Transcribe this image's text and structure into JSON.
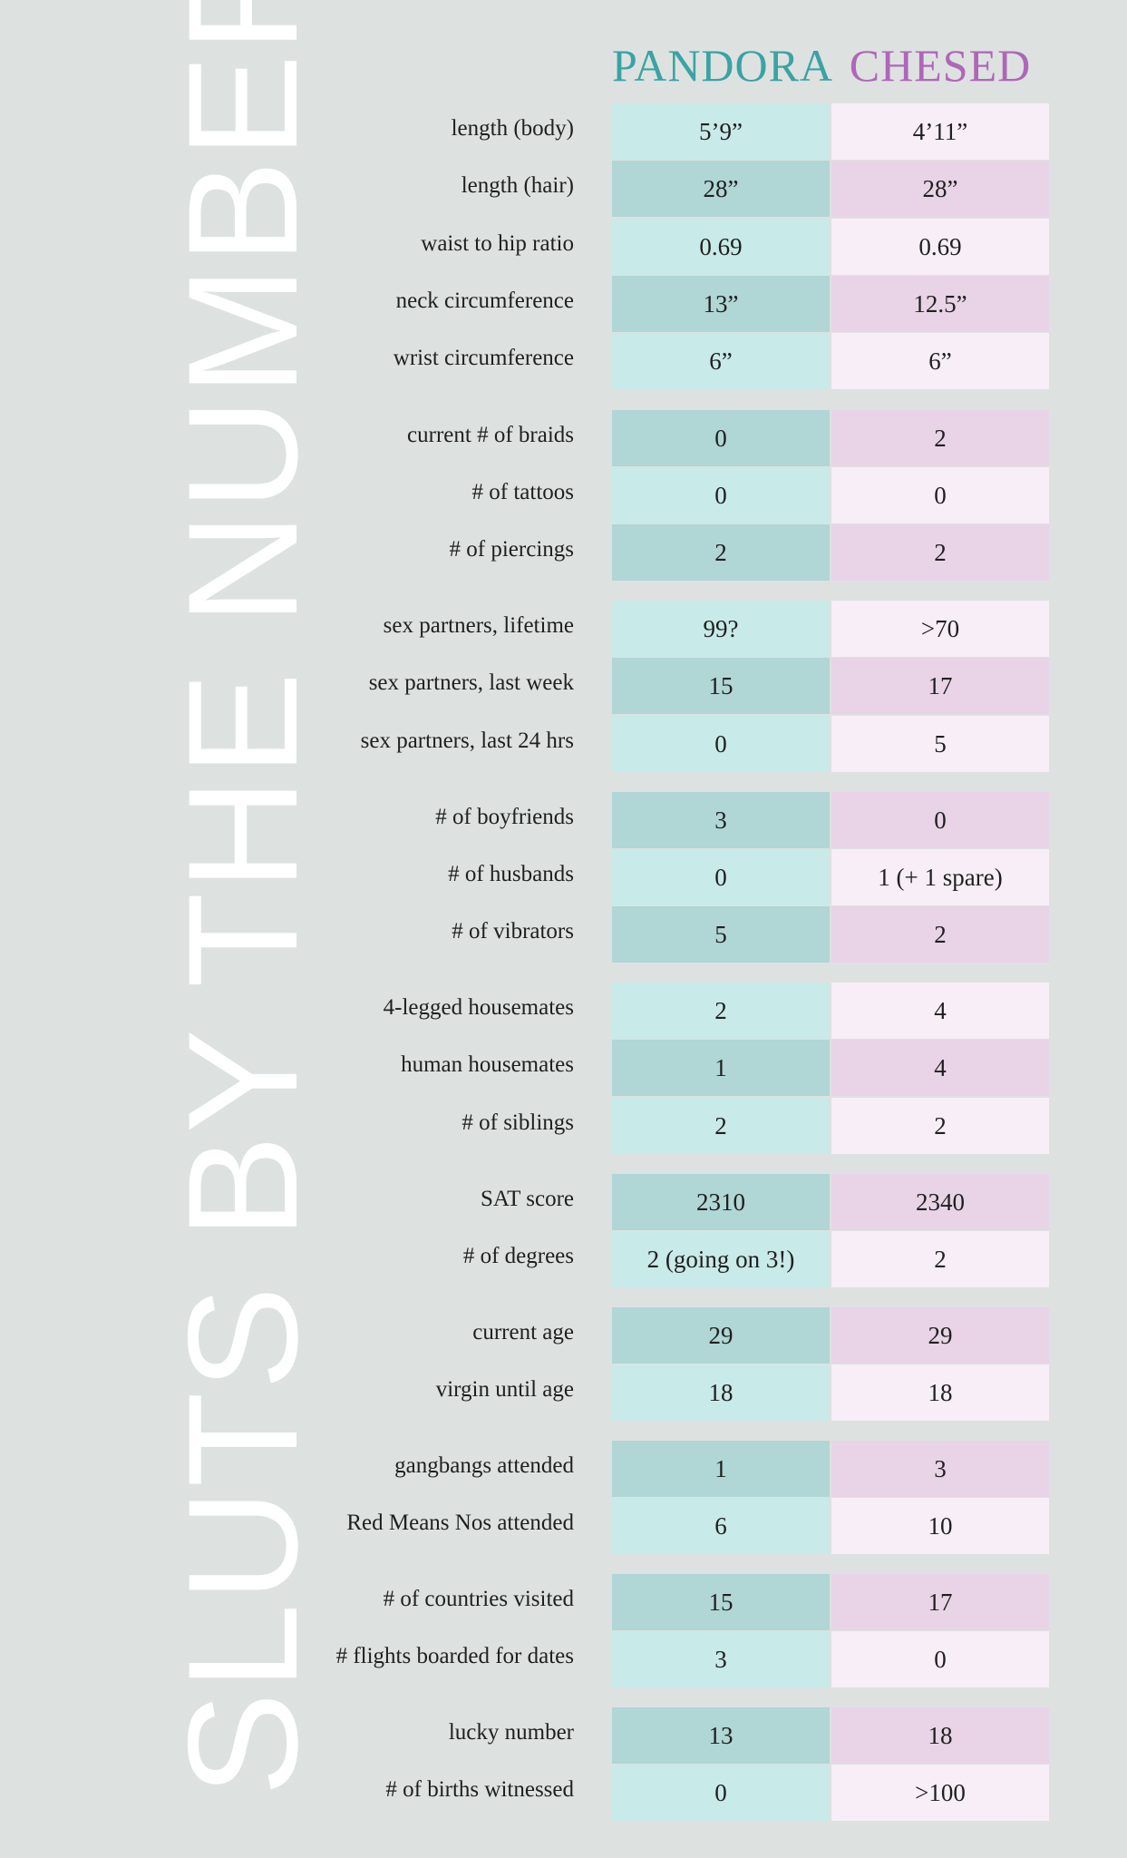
{
  "title": "SLUTS BY THE NUMBERS",
  "columns": {
    "pandora": "PANDORA",
    "chesed": "CHESED"
  },
  "colors": {
    "background": "#dde2e0",
    "pandora_header": "#3aa3a3",
    "chesed_header": "#b066b8",
    "pandora_dark": "#b0d6d5",
    "pandora_light": "#c8eae9",
    "chesed_dark": "#e8d4e6",
    "chesed_light": "#f7eef7"
  },
  "rows": [
    {
      "label": "length (body)",
      "pandora": "5’9”",
      "chesed": "4’11”"
    },
    {
      "label": "length (hair)",
      "pandora": "28”",
      "chesed": "28”"
    },
    {
      "label": "waist to hip ratio",
      "pandora": "0.69",
      "chesed": "0.69"
    },
    {
      "label": "neck circumference",
      "pandora": "13”",
      "chesed": "12.5”"
    },
    {
      "label": "wrist circumference",
      "pandora": "6”",
      "chesed": "6”"
    },
    {
      "label": "current # of braids",
      "pandora": "0",
      "chesed": "2"
    },
    {
      "label": "# of tattoos",
      "pandora": "0",
      "chesed": "0"
    },
    {
      "label": "# of piercings",
      "pandora": "2",
      "chesed": "2"
    },
    {
      "label": "sex partners, lifetime",
      "pandora": "99?",
      "chesed": ">70"
    },
    {
      "label": "sex partners, last week",
      "pandora": "15",
      "chesed": "17"
    },
    {
      "label": "sex partners, last 24 hrs",
      "pandora": "0",
      "chesed": "5"
    },
    {
      "label": "# of boyfriends",
      "pandora": "3",
      "chesed": "0"
    },
    {
      "label": "# of husbands",
      "pandora": "0",
      "chesed": "1 (+ 1 spare)"
    },
    {
      "label": "# of vibrators",
      "pandora": "5",
      "chesed": "2"
    },
    {
      "label": "4-legged housemates",
      "pandora": "2",
      "chesed": "4"
    },
    {
      "label": "human housemates",
      "pandora": "1",
      "chesed": "4"
    },
    {
      "label": "# of siblings",
      "pandora": "2",
      "chesed": "2"
    },
    {
      "label": "SAT score",
      "pandora": "2310",
      "chesed": "2340"
    },
    {
      "label": "# of degrees",
      "pandora": "2 (going on 3!)",
      "chesed": "2"
    },
    {
      "label": "current age",
      "pandora": "29",
      "chesed": "29"
    },
    {
      "label": "virgin until age",
      "pandora": "18",
      "chesed": "18"
    },
    {
      "label": "gangbangs attended",
      "pandora": "1",
      "chesed": "3"
    },
    {
      "label": "Red Means Nos attended",
      "pandora": "6",
      "chesed": "10"
    },
    {
      "label": "# of countries visited",
      "pandora": "15",
      "chesed": "17"
    },
    {
      "label": "# flights boarded for dates",
      "pandora": "3",
      "chesed": "0"
    },
    {
      "label": "lucky number",
      "pandora": "13",
      "chesed": "18"
    },
    {
      "label": "# of births witnessed",
      "pandora": "0",
      "chesed": ">100"
    }
  ]
}
